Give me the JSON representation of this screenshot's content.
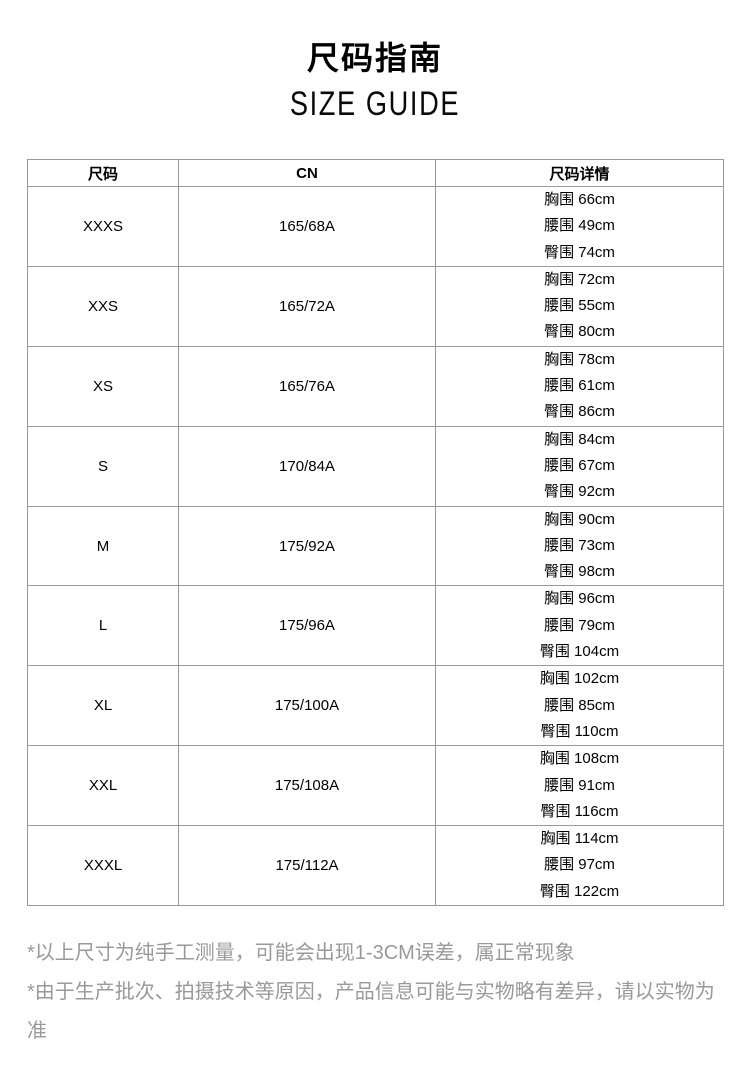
{
  "header": {
    "title_cn": "尺码指南",
    "title_en": "SIZE GUIDE"
  },
  "table": {
    "headers": [
      "尺码",
      "CN",
      "尺码详情"
    ],
    "rows": [
      {
        "size": "XXXS",
        "cn": "165/68A",
        "details": [
          "胸围 66cm",
          "腰围 49cm",
          "臀围 74cm"
        ]
      },
      {
        "size": "XXS",
        "cn": "165/72A",
        "details": [
          "胸围 72cm",
          "腰围 55cm",
          "臀围 80cm"
        ]
      },
      {
        "size": "XS",
        "cn": "165/76A",
        "details": [
          "胸围 78cm",
          "腰围 61cm",
          "臀围 86cm"
        ]
      },
      {
        "size": "S",
        "cn": "170/84A",
        "details": [
          "胸围 84cm",
          "腰围 67cm",
          "臀围 92cm"
        ]
      },
      {
        "size": "M",
        "cn": "175/92A",
        "details": [
          "胸围 90cm",
          "腰围 73cm",
          "臀围 98cm"
        ]
      },
      {
        "size": "L",
        "cn": "175/96A",
        "details": [
          "胸围 96cm",
          "腰围 79cm",
          "臀围 104cm"
        ]
      },
      {
        "size": "XL",
        "cn": "175/100A",
        "details": [
          "胸围 102cm",
          "腰围 85cm",
          "臀围 110cm"
        ]
      },
      {
        "size": "XXL",
        "cn": "175/108A",
        "details": [
          "胸围 108cm",
          "腰围 91cm",
          "臀围 116cm"
        ]
      },
      {
        "size": "XXXL",
        "cn": "175/112A",
        "details": [
          "胸围 114cm",
          "腰围 97cm",
          "臀围 122cm"
        ]
      }
    ]
  },
  "notes": [
    "*以上尺寸为纯手工测量，可能会出现1-3CM误差，属正常现象",
    "*由于生产批次、拍摄技术等原因，产品信息可能与实物略有差异，请以实物为准"
  ],
  "colors": {
    "background": "#ffffff",
    "table_border": "#999999",
    "table_text": "#000000",
    "note_text": "#999999"
  }
}
